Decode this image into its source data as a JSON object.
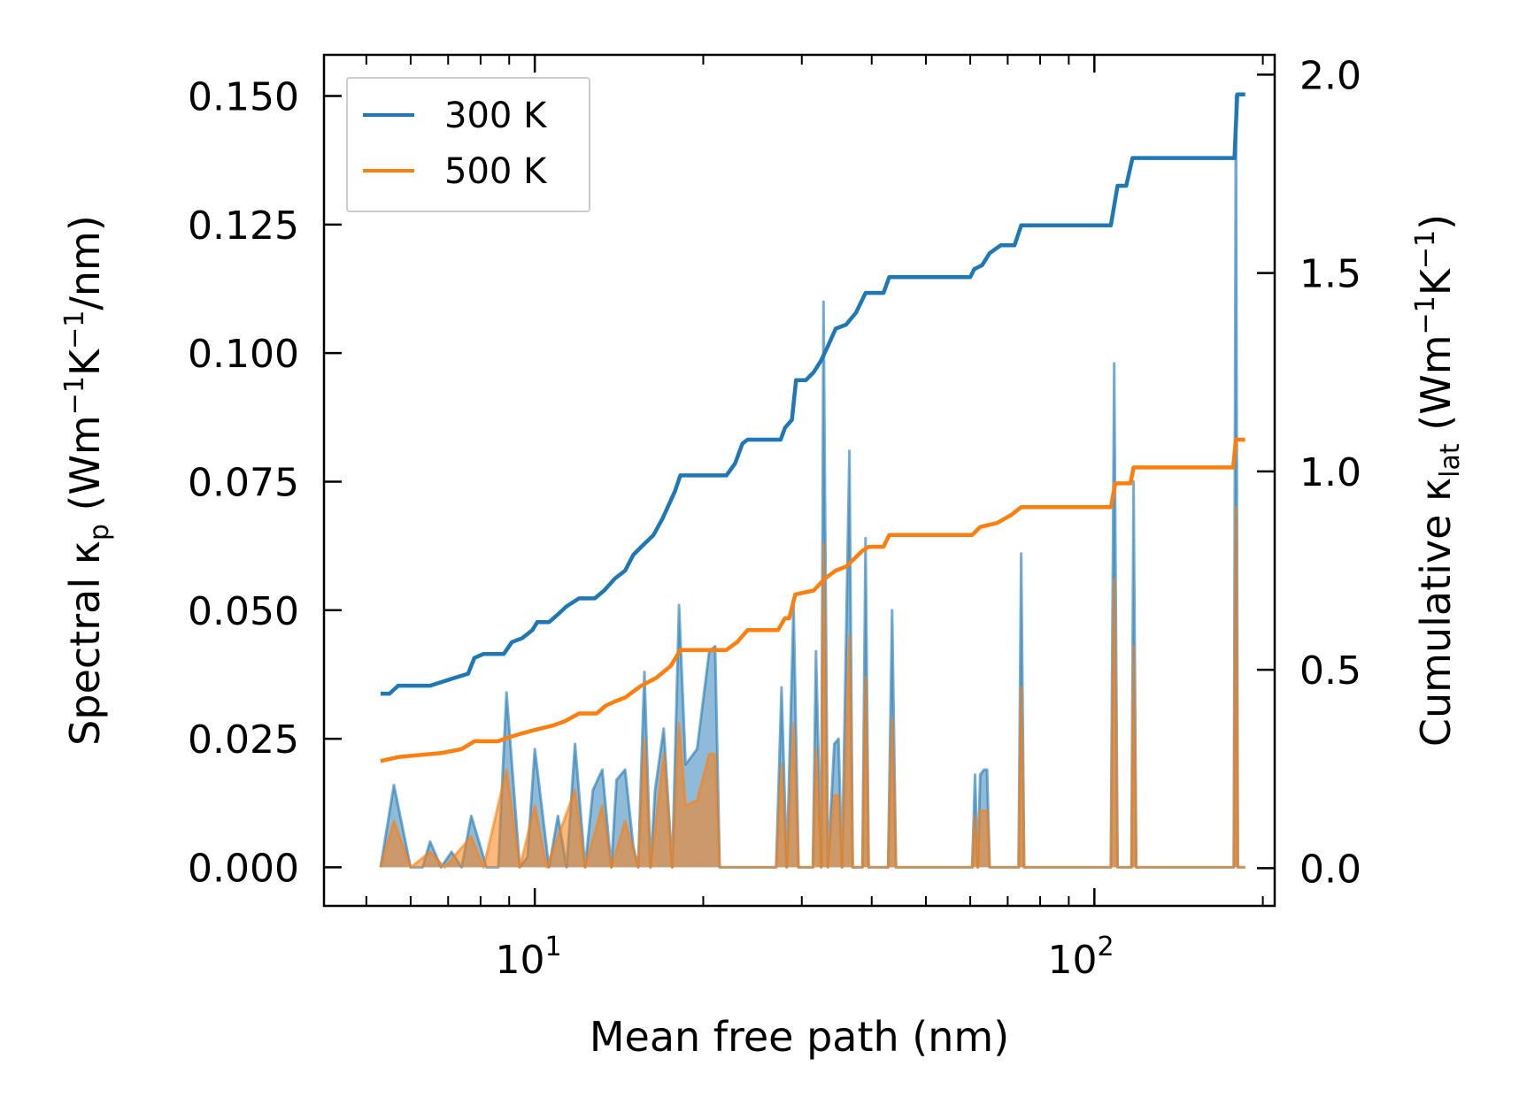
{
  "chart_data": {
    "type": "line",
    "xscale": "log",
    "xlabel": "Mean free path (nm)",
    "xlim": [
      4.2,
      210
    ],
    "x_ticks": [
      {
        "value": 10,
        "base": "10",
        "exp": "1"
      },
      {
        "value": 100,
        "base": "10",
        "exp": "2"
      }
    ],
    "left_axis": {
      "label_parts": [
        "Spectral κ",
        "p",
        " (Wm",
        "−1",
        "K",
        "−1",
        "/nm)"
      ],
      "ylim": [
        -0.0075,
        0.158
      ],
      "ticks": [
        0.0,
        0.025,
        0.05,
        0.075,
        0.1,
        0.125,
        0.15
      ],
      "tick_labels": [
        "0.000",
        "0.025",
        "0.050",
        "0.075",
        "0.100",
        "0.125",
        "0.150"
      ]
    },
    "right_axis": {
      "label_parts": [
        "Cumulative κ",
        "lat",
        " (Wm",
        "−1",
        "K",
        "−1",
        ")"
      ],
      "ylim": [
        -0.095,
        2.05
      ],
      "ticks": [
        0.0,
        0.5,
        1.0,
        1.5,
        2.0
      ],
      "tick_labels": [
        "0.0",
        "0.5",
        "1.0",
        "1.5",
        "2.0"
      ]
    },
    "legend": {
      "position": "top-left",
      "entries": [
        "300 K",
        "500 K"
      ]
    },
    "series": [
      {
        "name": "300 K",
        "color": "#1f77b4",
        "cumulative": [
          [
            5.3,
            0.44
          ],
          [
            5.5,
            0.44
          ],
          [
            5.7,
            0.46
          ],
          [
            6.5,
            0.46
          ],
          [
            7.2,
            0.48
          ],
          [
            7.6,
            0.49
          ],
          [
            7.8,
            0.53
          ],
          [
            8.1,
            0.54
          ],
          [
            8.8,
            0.54
          ],
          [
            9.1,
            0.57
          ],
          [
            9.5,
            0.58
          ],
          [
            9.9,
            0.6
          ],
          [
            10.1,
            0.62
          ],
          [
            10.6,
            0.62
          ],
          [
            11.0,
            0.64
          ],
          [
            11.4,
            0.66
          ],
          [
            12.0,
            0.68
          ],
          [
            12.8,
            0.68
          ],
          [
            13.3,
            0.7
          ],
          [
            13.5,
            0.71
          ],
          [
            13.9,
            0.73
          ],
          [
            14.5,
            0.75
          ],
          [
            15.0,
            0.79
          ],
          [
            15.5,
            0.81
          ],
          [
            16.3,
            0.84
          ],
          [
            16.9,
            0.88
          ],
          [
            17.8,
            0.95
          ],
          [
            18.2,
            0.99
          ],
          [
            22.0,
            0.99
          ],
          [
            22.8,
            1.02
          ],
          [
            23.5,
            1.07
          ],
          [
            24.0,
            1.08
          ],
          [
            27.5,
            1.08
          ],
          [
            28.0,
            1.11
          ],
          [
            28.8,
            1.13
          ],
          [
            29.3,
            1.23
          ],
          [
            30.5,
            1.23
          ],
          [
            31.5,
            1.25
          ],
          [
            32.5,
            1.28
          ],
          [
            33.5,
            1.32
          ],
          [
            34.5,
            1.36
          ],
          [
            36.0,
            1.37
          ],
          [
            37.5,
            1.4
          ],
          [
            39.0,
            1.45
          ],
          [
            42.0,
            1.45
          ],
          [
            43.0,
            1.49
          ],
          [
            60.0,
            1.49
          ],
          [
            61.0,
            1.51
          ],
          [
            63.0,
            1.52
          ],
          [
            65.0,
            1.55
          ],
          [
            68.0,
            1.57
          ],
          [
            72.0,
            1.57
          ],
          [
            74.0,
            1.62
          ],
          [
            107.0,
            1.62
          ],
          [
            110.0,
            1.72
          ],
          [
            114.0,
            1.72
          ],
          [
            117.0,
            1.79
          ],
          [
            178.0,
            1.79
          ],
          [
            180.0,
            1.95
          ],
          [
            186.0,
            1.95
          ]
        ],
        "spectral": [
          [
            5.3,
            0
          ],
          [
            5.6,
            0.016
          ],
          [
            6.0,
            0
          ],
          [
            6.3,
            0
          ],
          [
            6.5,
            0.005
          ],
          [
            6.8,
            0
          ],
          [
            7.1,
            0.003
          ],
          [
            7.4,
            0
          ],
          [
            7.7,
            0.01
          ],
          [
            8.2,
            0
          ],
          [
            8.6,
            0
          ],
          [
            8.9,
            0.034
          ],
          [
            9.4,
            0
          ],
          [
            9.7,
            0.002
          ],
          [
            10.0,
            0.023
          ],
          [
            10.6,
            0
          ],
          [
            11.0,
            0.01
          ],
          [
            11.4,
            0
          ],
          [
            11.8,
            0.024
          ],
          [
            12.3,
            0
          ],
          [
            12.7,
            0.015
          ],
          [
            13.2,
            0.019
          ],
          [
            13.7,
            0
          ],
          [
            14.0,
            0.017
          ],
          [
            14.5,
            0.019
          ],
          [
            15.0,
            0.004
          ],
          [
            15.3,
            0
          ],
          [
            15.7,
            0.038
          ],
          [
            16.1,
            0
          ],
          [
            16.4,
            0.015
          ],
          [
            17.0,
            0.027
          ],
          [
            17.6,
            0
          ],
          [
            18.1,
            0.051
          ],
          [
            18.6,
            0.02
          ],
          [
            19.5,
            0.023
          ],
          [
            20.5,
            0.042
          ],
          [
            21.0,
            0.043
          ],
          [
            21.4,
            0
          ],
          [
            27.0,
            0
          ],
          [
            27.6,
            0.035
          ],
          [
            28.2,
            0
          ],
          [
            29.0,
            0.051
          ],
          [
            29.6,
            0
          ],
          [
            31.4,
            0
          ],
          [
            31.8,
            0.042
          ],
          [
            32.5,
            0
          ],
          [
            32.8,
            0.11
          ],
          [
            33.4,
            0
          ],
          [
            34.3,
            0.024
          ],
          [
            34.9,
            0.025
          ],
          [
            35.4,
            0
          ],
          [
            36.5,
            0.081
          ],
          [
            37.0,
            0
          ],
          [
            38.5,
            0
          ],
          [
            39.0,
            0.064
          ],
          [
            39.5,
            0
          ],
          [
            42.8,
            0
          ],
          [
            43.5,
            0.05
          ],
          [
            44.2,
            0
          ],
          [
            60.5,
            0
          ],
          [
            61.2,
            0.018
          ],
          [
            61.9,
            0
          ],
          [
            62.5,
            0.018
          ],
          [
            63.5,
            0.019
          ],
          [
            64.3,
            0.019
          ],
          [
            65.0,
            0
          ],
          [
            73.2,
            0
          ],
          [
            74.0,
            0.061
          ],
          [
            74.9,
            0
          ],
          [
            107.0,
            0
          ],
          [
            108.5,
            0.098
          ],
          [
            110.0,
            0
          ],
          [
            116.5,
            0
          ],
          [
            117.5,
            0.075
          ],
          [
            118.8,
            0
          ],
          [
            177.5,
            0
          ],
          [
            179.0,
            0.15
          ],
          [
            180.5,
            0
          ],
          [
            186.0,
            0
          ]
        ]
      },
      {
        "name": "500 K",
        "color": "#ff7f0e",
        "cumulative": [
          [
            5.3,
            0.27
          ],
          [
            5.7,
            0.28
          ],
          [
            6.8,
            0.29
          ],
          [
            7.4,
            0.3
          ],
          [
            7.8,
            0.32
          ],
          [
            8.6,
            0.32
          ],
          [
            9.0,
            0.33
          ],
          [
            9.5,
            0.34
          ],
          [
            10.1,
            0.35
          ],
          [
            10.8,
            0.36
          ],
          [
            11.3,
            0.37
          ],
          [
            12.0,
            0.39
          ],
          [
            12.9,
            0.39
          ],
          [
            13.4,
            0.41
          ],
          [
            13.9,
            0.42
          ],
          [
            14.5,
            0.43
          ],
          [
            15.5,
            0.46
          ],
          [
            16.5,
            0.48
          ],
          [
            17.5,
            0.51
          ],
          [
            18.2,
            0.55
          ],
          [
            22.0,
            0.55
          ],
          [
            23.0,
            0.57
          ],
          [
            24.0,
            0.6
          ],
          [
            27.2,
            0.6
          ],
          [
            28.0,
            0.63
          ],
          [
            28.5,
            0.63
          ],
          [
            29.2,
            0.69
          ],
          [
            31.5,
            0.7
          ],
          [
            33.0,
            0.73
          ],
          [
            34.5,
            0.75
          ],
          [
            36.0,
            0.76
          ],
          [
            38.5,
            0.8
          ],
          [
            39.5,
            0.81
          ],
          [
            42.0,
            0.81
          ],
          [
            43.0,
            0.84
          ],
          [
            60.5,
            0.84
          ],
          [
            62.5,
            0.86
          ],
          [
            67.0,
            0.87
          ],
          [
            71.0,
            0.89
          ],
          [
            74.0,
            0.91
          ],
          [
            107.0,
            0.91
          ],
          [
            109.0,
            0.97
          ],
          [
            116.0,
            0.97
          ],
          [
            117.5,
            1.01
          ],
          [
            177.0,
            1.01
          ],
          [
            179.0,
            1.08
          ],
          [
            186.0,
            1.08
          ]
        ],
        "spectral": [
          [
            5.3,
            0
          ],
          [
            5.6,
            0.009
          ],
          [
            6.0,
            0
          ],
          [
            6.5,
            0.003
          ],
          [
            6.9,
            0
          ],
          [
            7.7,
            0.006
          ],
          [
            8.1,
            0
          ],
          [
            8.9,
            0.019
          ],
          [
            9.4,
            0
          ],
          [
            10.0,
            0.012
          ],
          [
            10.5,
            0
          ],
          [
            11.8,
            0.015
          ],
          [
            12.3,
            0
          ],
          [
            13.2,
            0.012
          ],
          [
            13.7,
            0
          ],
          [
            14.5,
            0.009
          ],
          [
            15.3,
            0
          ],
          [
            15.7,
            0.025
          ],
          [
            16.1,
            0
          ],
          [
            17.0,
            0.022
          ],
          [
            17.6,
            0
          ],
          [
            18.1,
            0.028
          ],
          [
            18.6,
            0.012
          ],
          [
            19.5,
            0.013
          ],
          [
            20.5,
            0.022
          ],
          [
            21.0,
            0.022
          ],
          [
            21.4,
            0
          ],
          [
            27.0,
            0
          ],
          [
            27.6,
            0.02
          ],
          [
            28.2,
            0
          ],
          [
            29.0,
            0.028
          ],
          [
            29.6,
            0
          ],
          [
            31.4,
            0
          ],
          [
            31.8,
            0.023
          ],
          [
            32.5,
            0
          ],
          [
            32.8,
            0.063
          ],
          [
            33.4,
            0
          ],
          [
            34.3,
            0.014
          ],
          [
            34.9,
            0.014
          ],
          [
            35.4,
            0
          ],
          [
            36.5,
            0.045
          ],
          [
            37.0,
            0
          ],
          [
            38.5,
            0
          ],
          [
            39.0,
            0.037
          ],
          [
            39.5,
            0
          ],
          [
            42.8,
            0
          ],
          [
            43.5,
            0.029
          ],
          [
            44.2,
            0
          ],
          [
            60.5,
            0
          ],
          [
            61.2,
            0.01
          ],
          [
            61.9,
            0
          ],
          [
            62.5,
            0.011
          ],
          [
            64.3,
            0.011
          ],
          [
            65.0,
            0
          ],
          [
            73.2,
            0
          ],
          [
            74.0,
            0.035
          ],
          [
            74.9,
            0
          ],
          [
            107.0,
            0
          ],
          [
            108.5,
            0.056
          ],
          [
            110.0,
            0
          ],
          [
            116.5,
            0
          ],
          [
            117.5,
            0.043
          ],
          [
            118.8,
            0
          ],
          [
            177.5,
            0
          ],
          [
            179.0,
            0.07
          ],
          [
            180.5,
            0
          ],
          [
            186.0,
            0
          ]
        ]
      }
    ]
  }
}
